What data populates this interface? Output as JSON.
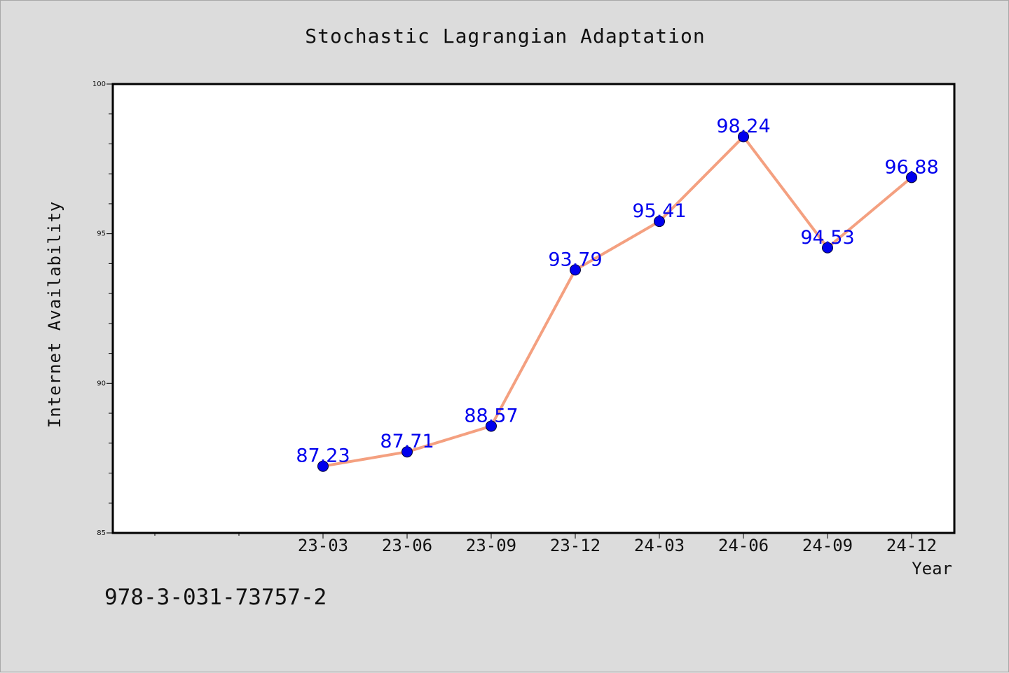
{
  "chart_data": {
    "type": "line",
    "title": "Stochastic Lagrangian Adaptation",
    "xlabel": "Year",
    "ylabel": "Internet Availability",
    "categories": [
      "23-03",
      "23-06",
      "23-09",
      "23-12",
      "24-03",
      "24-06",
      "24-09",
      "24-12"
    ],
    "values": [
      87.23,
      87.71,
      88.57,
      93.79,
      95.41,
      98.24,
      94.53,
      96.88
    ],
    "data_labels": [
      "87.23",
      "87.71",
      "88.57",
      "93.79",
      "95.41",
      "98.24",
      "94.53",
      "96.88"
    ],
    "ylim": [
      85,
      100
    ],
    "yticks": [
      85,
      90,
      95,
      100
    ],
    "ytick_labels": [
      "85",
      "90",
      "95",
      "100"
    ],
    "grid": false,
    "colors": {
      "line": "#f4a080",
      "marker": "#0000ee",
      "label": "#0000ee"
    }
  },
  "footer": {
    "code": "978-3-031-73757-2"
  }
}
